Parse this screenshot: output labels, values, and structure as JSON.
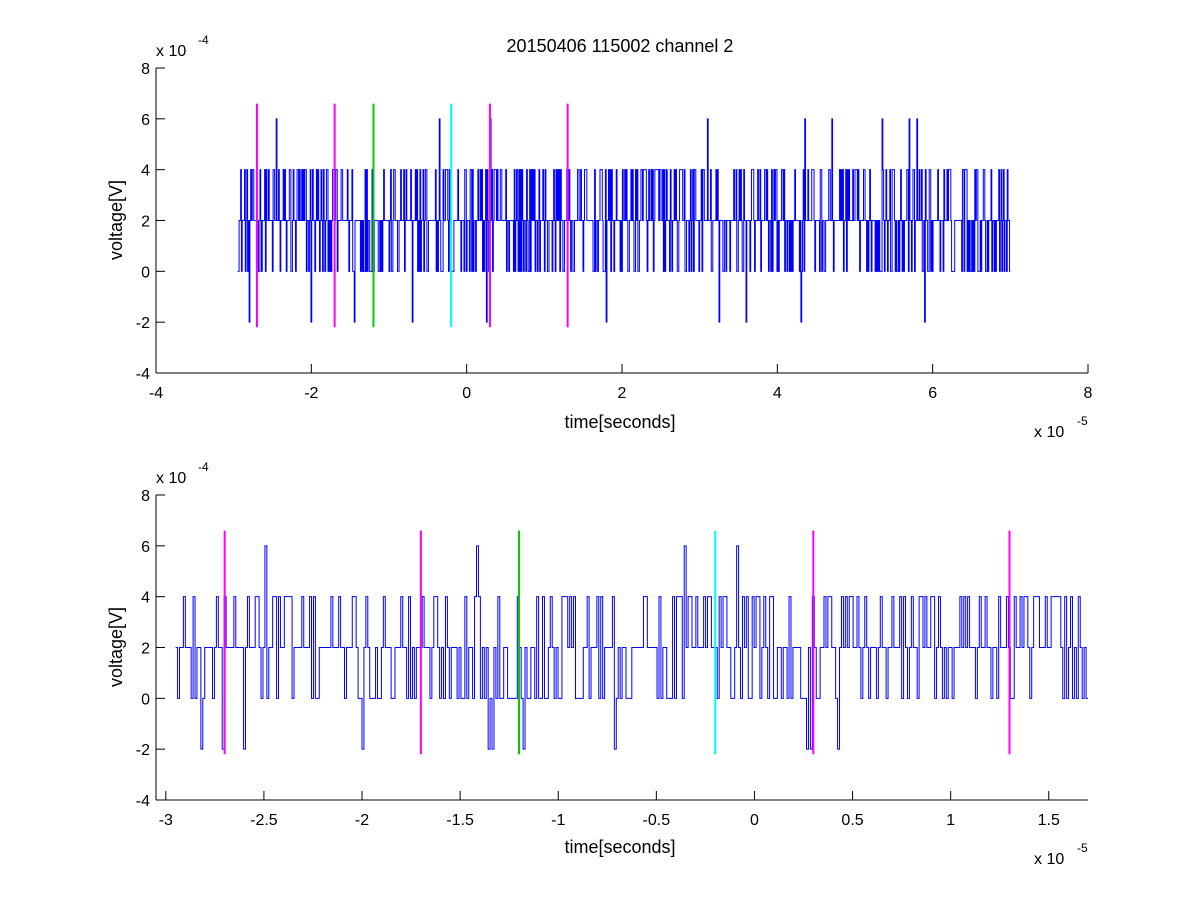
{
  "title": "20150406 115002 channel 2",
  "colors": {
    "signal": "#0000ff",
    "magenta": "#ff00ff",
    "green": "#00cc00",
    "cyan": "#00ffff",
    "axes": "#000000"
  },
  "chart_data": [
    {
      "type": "line",
      "name": "full-trace",
      "xlabel": "time[seconds]",
      "ylabel": "voltage[V]",
      "x_multiplier_label": "x 10",
      "x_multiplier_exp": "-5",
      "y_multiplier_label": "x 10",
      "y_multiplier_exp": "-4",
      "xlim": [
        -4,
        8
      ],
      "ylim": [
        -4,
        8
      ],
      "xticks": [
        -4,
        -2,
        0,
        2,
        4,
        6,
        8
      ],
      "xtick_labels": [
        "-4",
        "-2",
        "0",
        "2",
        "4",
        "6",
        "8"
      ],
      "yticks": [
        -4,
        -2,
        0,
        2,
        4,
        6,
        8
      ],
      "ytick_labels": [
        "-4",
        "-2",
        "0",
        "2",
        "4",
        "6",
        "8"
      ],
      "signal": {
        "x_range": [
          -2.95,
          7.0
        ],
        "levels": [
          0,
          2,
          4
        ],
        "baseline_level": 2,
        "spikes_up": [
          [
            -2.45,
            6
          ],
          [
            -1.45,
            6
          ],
          [
            -0.35,
            6
          ],
          [
            0.3,
            6
          ],
          [
            3.1,
            6
          ],
          [
            3.25,
            6
          ],
          [
            4.35,
            6
          ],
          [
            4.7,
            6
          ],
          [
            5.35,
            6
          ],
          [
            5.7,
            6
          ],
          [
            5.8,
            6
          ]
        ],
        "spikes_down": [
          [
            -2.8,
            -2
          ],
          [
            -2.0,
            -2
          ],
          [
            -1.45,
            -2
          ],
          [
            -0.7,
            -2
          ],
          [
            -0.2,
            -2
          ],
          [
            0.25,
            -2
          ],
          [
            1.8,
            -2
          ],
          [
            3.25,
            -2
          ],
          [
            3.6,
            -2
          ],
          [
            4.3,
            -2
          ],
          [
            5.9,
            -2
          ]
        ]
      },
      "markers": [
        {
          "x": -2.7,
          "color": "magenta"
        },
        {
          "x": -1.7,
          "color": "magenta"
        },
        {
          "x": -1.2,
          "color": "green"
        },
        {
          "x": -0.2,
          "color": "cyan"
        },
        {
          "x": 0.3,
          "color": "magenta"
        },
        {
          "x": 1.3,
          "color": "magenta"
        }
      ],
      "marker_range": [
        -2.2,
        6.6
      ]
    },
    {
      "type": "line",
      "name": "zoomed-trace",
      "xlabel": "time[seconds]",
      "ylabel": "voltage[V]",
      "x_multiplier_label": "x 10",
      "x_multiplier_exp": "-5",
      "y_multiplier_label": "x 10",
      "y_multiplier_exp": "-4",
      "xlim": [
        -3.05,
        1.7
      ],
      "ylim": [
        -4,
        8
      ],
      "xticks": [
        -3,
        -2.5,
        -2,
        -1.5,
        -1,
        -0.5,
        0,
        0.5,
        1,
        1.5
      ],
      "xtick_labels": [
        "-3",
        "-2.5",
        "-2",
        "-1.5",
        "-1",
        "-0.5",
        "0",
        "0.5",
        "1",
        "1.5"
      ],
      "yticks": [
        -4,
        -2,
        0,
        2,
        4,
        6,
        8
      ],
      "ytick_labels": [
        "-4",
        "-2",
        "0",
        "2",
        "4",
        "6",
        "8"
      ],
      "signal": {
        "x_range": [
          -2.95,
          1.7
        ],
        "levels": [
          0,
          2,
          4
        ],
        "baseline_level": 2,
        "spikes_up": [
          [
            -2.49,
            6
          ],
          [
            -1.42,
            6
          ],
          [
            -0.36,
            6
          ],
          [
            -0.09,
            6
          ]
        ],
        "spikes_down": [
          [
            -2.82,
            -2
          ],
          [
            -2.71,
            -2
          ],
          [
            -2.6,
            -2
          ],
          [
            -2.0,
            -2
          ],
          [
            -1.36,
            -2
          ],
          [
            -1.34,
            -2
          ],
          [
            -1.18,
            -2
          ],
          [
            -0.71,
            -2
          ],
          [
            0.27,
            -2
          ],
          [
            0.29,
            -2
          ],
          [
            0.42,
            -2
          ]
        ]
      },
      "markers": [
        {
          "x": -2.7,
          "color": "magenta"
        },
        {
          "x": -1.7,
          "color": "magenta"
        },
        {
          "x": -1.2,
          "color": "green"
        },
        {
          "x": -0.2,
          "color": "cyan"
        },
        {
          "x": 0.3,
          "color": "magenta"
        },
        {
          "x": 1.3,
          "color": "magenta"
        }
      ],
      "marker_range": [
        -2.2,
        6.6
      ]
    }
  ]
}
